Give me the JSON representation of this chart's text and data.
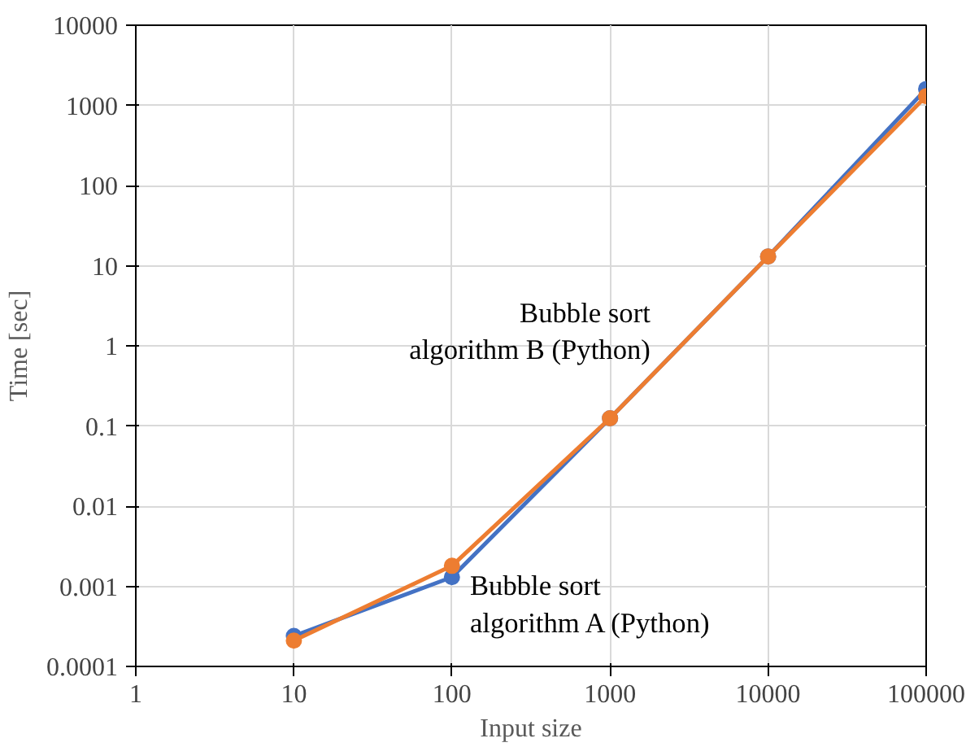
{
  "chart_data": {
    "type": "line",
    "xlabel": "Input size",
    "ylabel": "Time [sec]",
    "x": [
      10,
      100,
      1000,
      10000,
      100000
    ],
    "series": [
      {
        "name": "Bubble sort\nalgorithm A (Python)",
        "color": "#4472c4",
        "values": [
          0.00024,
          0.0013,
          0.125,
          13,
          1600
        ]
      },
      {
        "name": "Bubble sort\nalgorithm B (Python)",
        "color": "#ed7d31",
        "values": [
          0.00021,
          0.0018,
          0.125,
          13,
          1300
        ]
      }
    ],
    "log": "xy",
    "xlim": [
      1,
      100000
    ],
    "ylim": [
      0.0001,
      10000
    ],
    "xticks": [
      1,
      10,
      100,
      1000,
      10000,
      100000
    ],
    "yticks": [
      0.0001,
      0.001,
      0.01,
      0.1,
      1,
      10,
      100,
      1000,
      10000
    ],
    "grid": true,
    "marker": "circle",
    "line_style": "solid"
  }
}
